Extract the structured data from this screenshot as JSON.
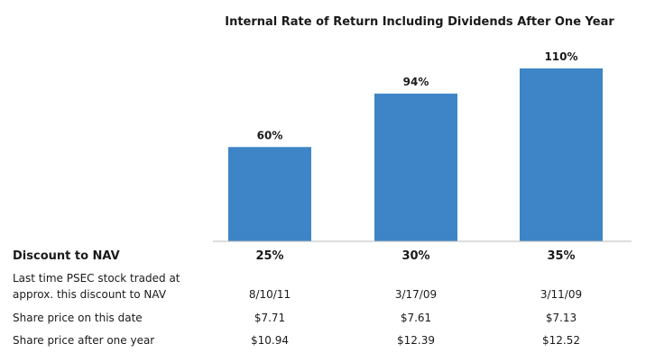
{
  "chart_data": {
    "type": "bar",
    "title": "Internal Rate of Return Including Dividends After One Year",
    "categories": [
      "25%",
      "30%",
      "35%"
    ],
    "values": [
      60,
      94,
      110
    ],
    "value_labels": [
      "60%",
      "94%",
      "110%"
    ],
    "ylim": [
      0,
      110
    ],
    "grid": false,
    "bar_color": "#3d85c6",
    "axis_color": "#bbbbbb"
  },
  "table": {
    "header_label": "Discount to NAV",
    "rows": [
      {
        "label_line1": "Last time PSEC stock traded at",
        "label_line2": "approx. this discount to NAV",
        "values": [
          "8/10/11",
          "3/17/09",
          "3/11/09"
        ]
      },
      {
        "label": "Share price on this date",
        "values": [
          "$7.71",
          "$7.61",
          "$7.13"
        ]
      },
      {
        "label": "Share price after one year",
        "values": [
          "$10.94",
          "$12.39",
          "$12.52"
        ]
      }
    ]
  }
}
